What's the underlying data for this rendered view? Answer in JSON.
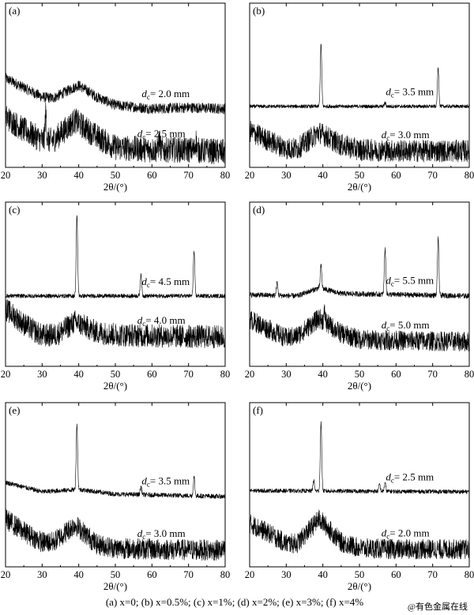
{
  "figure": {
    "caption": "(a) x=0; (b) x=0.5%; (c) x=1%; (d) x=2%; (e) x=3%; (f) x=4%",
    "watermark": "@有色金属在线"
  },
  "chart_data": [
    {
      "type": "line",
      "panel": "(a)",
      "xlabel": "2θ/(°)",
      "ylabel": "",
      "xlim": [
        20,
        80
      ],
      "xticks": [
        20,
        30,
        40,
        50,
        60,
        70,
        80
      ],
      "grid": false,
      "series": [
        {
          "name": "dc= 2.0 mm",
          "position": "upper",
          "noise": 0.9,
          "baseline": [
            [
              20,
              7.6
            ],
            [
              25,
              6.8
            ],
            [
              30,
              6.0
            ],
            [
              33,
              5.9
            ],
            [
              40,
              7.0
            ],
            [
              45,
              6.0
            ],
            [
              50,
              5.3
            ],
            [
              60,
              5.0
            ],
            [
              70,
              5.1
            ],
            [
              80,
              5.0
            ]
          ],
          "peaks": []
        },
        {
          "name": "dc= 2.5 mm",
          "position": "lower",
          "noise": 2.2,
          "baseline": [
            [
              20,
              4.3
            ],
            [
              25,
              3.2
            ],
            [
              30,
              2.3
            ],
            [
              33,
              2.3
            ],
            [
              39,
              4.0
            ],
            [
              45,
              2.6
            ],
            [
              50,
              1.7
            ],
            [
              60,
              1.5
            ],
            [
              70,
              1.5
            ],
            [
              80,
              1.3
            ]
          ],
          "peaks": [
            [
              31,
              2.3
            ],
            [
              62,
              0.8
            ],
            [
              72,
              0.8
            ]
          ]
        }
      ]
    },
    {
      "type": "line",
      "panel": "(b)",
      "xlabel": "2θ/(°)",
      "ylabel": "",
      "xlim": [
        20,
        80
      ],
      "xticks": [
        20,
        30,
        40,
        50,
        60,
        70,
        80
      ],
      "grid": false,
      "series": [
        {
          "name": "dc= 3.5 mm",
          "position": "upper",
          "noise": 0.3,
          "baseline": [
            [
              20,
              5.2
            ],
            [
              80,
              5.2
            ]
          ],
          "peaks": [
            [
              39.5,
              5.3
            ],
            [
              57,
              0.3
            ],
            [
              71.5,
              3.3
            ]
          ]
        },
        {
          "name": "dc= 3.0 mm",
          "position": "lower",
          "noise": 1.9,
          "baseline": [
            [
              20,
              3.1
            ],
            [
              25,
              2.3
            ],
            [
              30,
              1.6
            ],
            [
              33,
              1.6
            ],
            [
              39,
              3.0
            ],
            [
              45,
              1.9
            ],
            [
              50,
              1.5
            ],
            [
              60,
              1.4
            ],
            [
              80,
              1.4
            ]
          ],
          "peaks": []
        }
      ]
    },
    {
      "type": "line",
      "panel": "(c)",
      "xlabel": "2θ/(°)",
      "ylabel": "",
      "xlim": [
        20,
        80
      ],
      "xticks": [
        20,
        30,
        40,
        50,
        60,
        70,
        80
      ],
      "grid": false,
      "series": [
        {
          "name": "dc= 4.5 mm",
          "position": "upper",
          "noise": 0.35,
          "baseline": [
            [
              20,
              6.0
            ],
            [
              80,
              6.0
            ]
          ],
          "peaks": [
            [
              39.5,
              6.8
            ],
            [
              57,
              1.9
            ],
            [
              71.5,
              3.8
            ]
          ]
        },
        {
          "name": "dc= 4.0 mm",
          "position": "lower",
          "noise": 2.0,
          "baseline": [
            [
              20,
              4.9
            ],
            [
              25,
              3.6
            ],
            [
              30,
              2.6
            ],
            [
              34,
              2.7
            ],
            [
              39,
              3.8
            ],
            [
              45,
              2.9
            ],
            [
              50,
              2.7
            ],
            [
              60,
              2.6
            ],
            [
              80,
              2.5
            ]
          ],
          "peaks": []
        }
      ]
    },
    {
      "type": "line",
      "panel": "(d)",
      "xlabel": "2θ/(°)",
      "ylabel": "",
      "xlim": [
        20,
        80
      ],
      "xticks": [
        20,
        30,
        40,
        50,
        60,
        70,
        80
      ],
      "grid": false,
      "series": [
        {
          "name": "dc= 5.5 mm",
          "position": "upper",
          "noise": 0.45,
          "baseline": [
            [
              20,
              6.1
            ],
            [
              33,
              6.0
            ],
            [
              39,
              6.7
            ],
            [
              45,
              6.2
            ],
            [
              80,
              6.0
            ]
          ],
          "peaks": [
            [
              27.5,
              1.1
            ],
            [
              39.5,
              1.9
            ],
            [
              57,
              3.9
            ],
            [
              71.5,
              4.8
            ]
          ]
        },
        {
          "name": "dc= 5.0 mm",
          "position": "lower",
          "noise": 1.7,
          "baseline": [
            [
              20,
              4.0
            ],
            [
              25,
              3.2
            ],
            [
              30,
              2.4
            ],
            [
              33,
              2.6
            ],
            [
              39,
              4.1
            ],
            [
              45,
              2.8
            ],
            [
              50,
              2.3
            ],
            [
              60,
              2.2
            ],
            [
              80,
              2.1
            ]
          ],
          "peaks": [
            [
              40.5,
              0.8
            ]
          ]
        }
      ]
    },
    {
      "type": "line",
      "panel": "(e)",
      "xlabel": "2θ/(°)",
      "ylabel": "",
      "xlim": [
        20,
        80
      ],
      "xticks": [
        20,
        30,
        40,
        50,
        60,
        70,
        80
      ],
      "grid": false,
      "series": [
        {
          "name": "dc= 3.5 mm",
          "position": "upper",
          "noise": 0.4,
          "baseline": [
            [
              20,
              7.2
            ],
            [
              30,
              6.4
            ],
            [
              40,
              6.6
            ],
            [
              50,
              6.2
            ],
            [
              80,
              6.0
            ]
          ],
          "peaks": [
            [
              39.5,
              5.6
            ],
            [
              57,
              0.7
            ],
            [
              71.5,
              1.6
            ]
          ]
        },
        {
          "name": "dc= 3.0 mm",
          "position": "lower",
          "noise": 1.8,
          "baseline": [
            [
              20,
              4.1
            ],
            [
              25,
              3.0
            ],
            [
              30,
              2.1
            ],
            [
              33,
              2.1
            ],
            [
              39,
              3.6
            ],
            [
              45,
              1.9
            ],
            [
              50,
              1.6
            ],
            [
              60,
              1.5
            ],
            [
              80,
              1.4
            ]
          ],
          "peaks": []
        }
      ]
    },
    {
      "type": "line",
      "panel": "(f)",
      "xlabel": "2θ/(°)",
      "ylabel": "",
      "xlim": [
        20,
        80
      ],
      "xticks": [
        20,
        30,
        40,
        50,
        60,
        70,
        80
      ],
      "grid": false,
      "series": [
        {
          "name": "dc= 2.5 mm",
          "position": "upper",
          "noise": 0.35,
          "baseline": [
            [
              20,
              6.5
            ],
            [
              80,
              6.4
            ]
          ],
          "peaks": [
            [
              37.5,
              0.9
            ],
            [
              39.5,
              5.8
            ],
            [
              55.5,
              0.6
            ],
            [
              57,
              0.7
            ]
          ]
        },
        {
          "name": "dc= 2.0 mm",
          "position": "lower",
          "noise": 1.7,
          "baseline": [
            [
              20,
              3.7
            ],
            [
              25,
              2.9
            ],
            [
              30,
              2.0
            ],
            [
              33,
              2.0
            ],
            [
              39,
              4.1
            ],
            [
              45,
              2.1
            ],
            [
              50,
              1.6
            ],
            [
              60,
              1.5
            ],
            [
              80,
              1.5
            ]
          ],
          "peaks": []
        }
      ]
    }
  ]
}
